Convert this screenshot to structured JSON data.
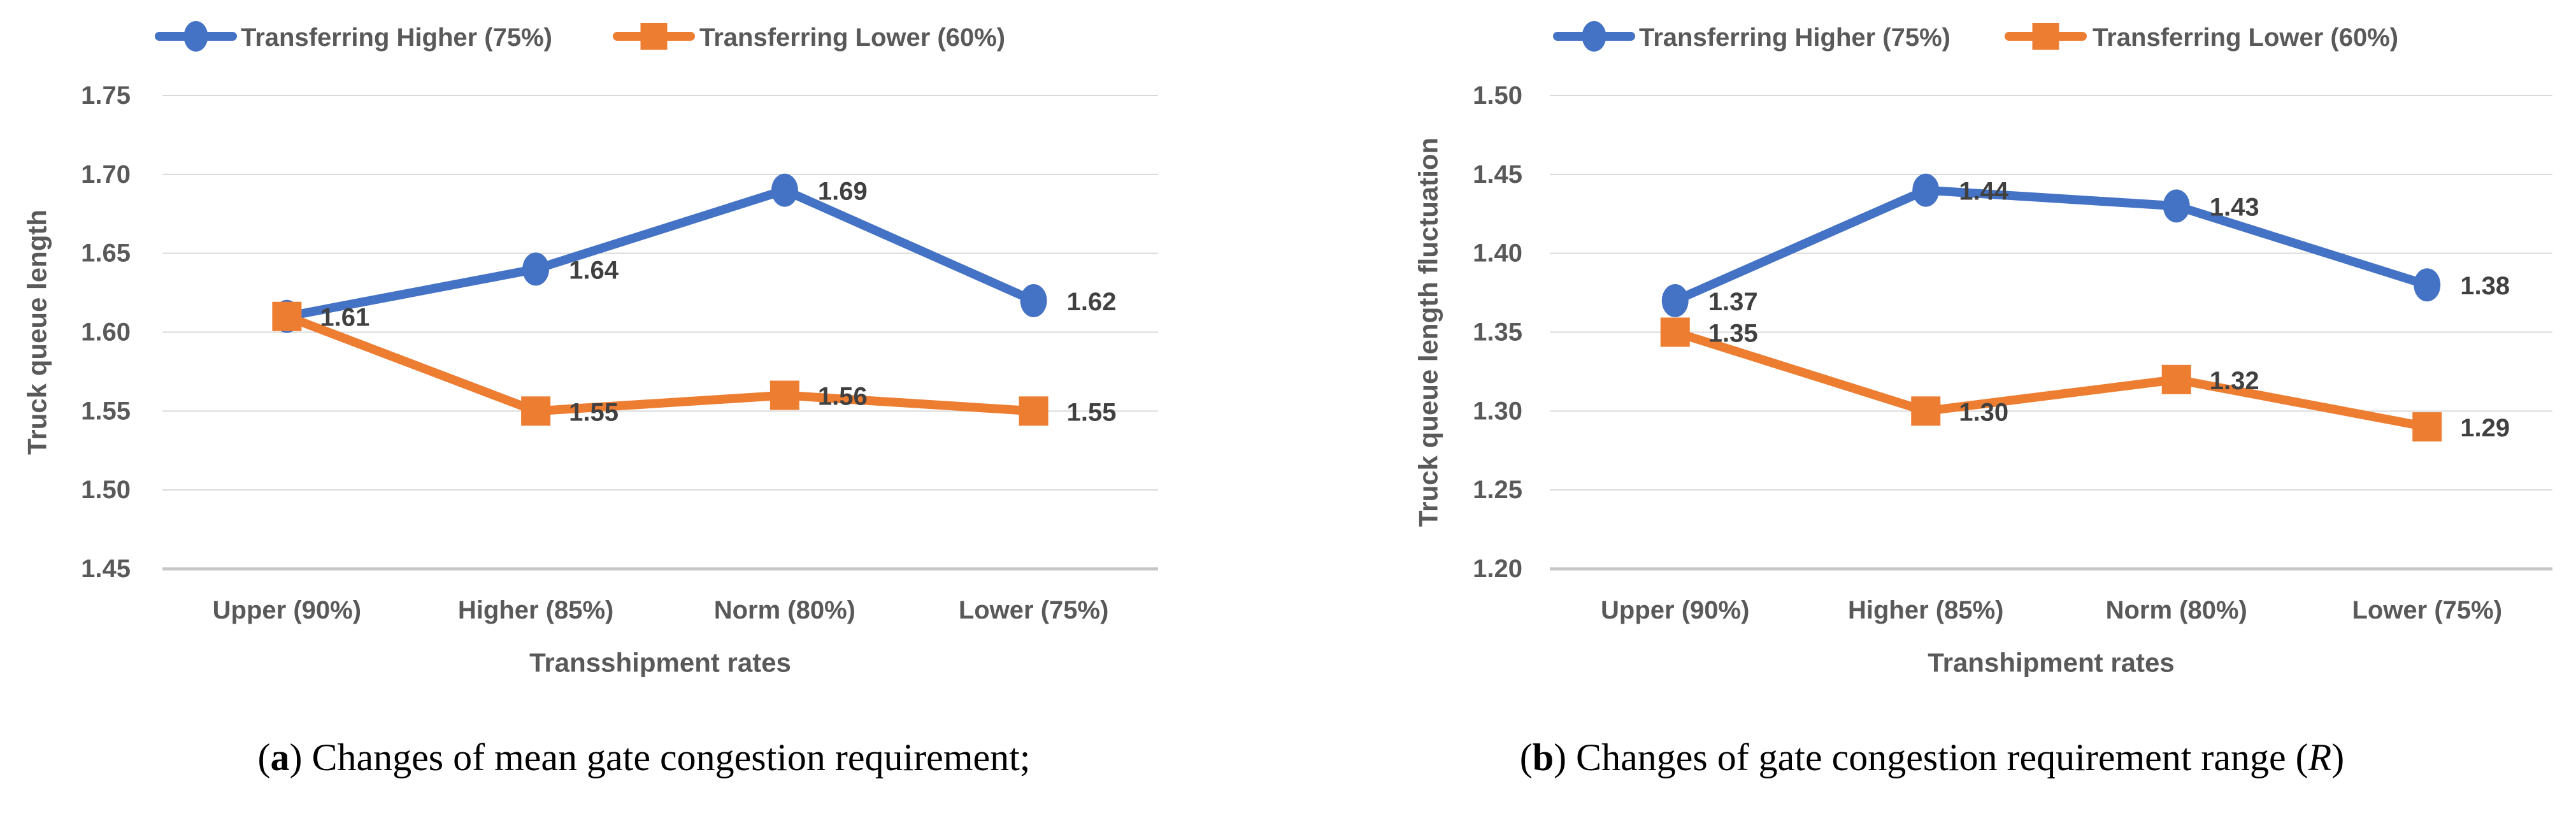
{
  "colors": {
    "series_blue": "#4472C4",
    "series_orange": "#ED7D31",
    "gridline": "#D9D9D9",
    "axis_line": "#C6C6C6",
    "axis_text": "#595959",
    "data_label_text": "#404040",
    "caption_text": "#000000"
  },
  "figures": [
    {
      "caption_parts": [
        {
          "t": "(",
          "s": "n"
        },
        {
          "t": "a",
          "s": "b"
        },
        {
          "t": ") Changes of mean gate congestion requirement;",
          "s": "n"
        }
      ],
      "chart_data": {
        "type": "line",
        "categories": [
          "Upper (90%)",
          "Higher (85%)",
          "Norm (80%)",
          "Lower (75%)"
        ],
        "xlabel": "Transshipment rates",
        "ylabel": "Truck queue length",
        "ylim": [
          1.45,
          1.75
        ],
        "ytick_step": 0.05,
        "yticks_top_to_bottom": [
          "1.75",
          "1.70",
          "1.65",
          "1.60",
          "1.55",
          "1.50",
          "1.45"
        ],
        "grid": true,
        "legend_position": "top",
        "series": [
          {
            "name": "Transferring Higher (75%)",
            "color": "#4472C4",
            "marker": "circle",
            "values": [
              1.61,
              1.64,
              1.69,
              1.62
            ],
            "labels": [
              "",
              "1.64",
              "1.69",
              "1.62"
            ]
          },
          {
            "name": "Transferring Lower (60%)",
            "color": "#ED7D31",
            "marker": "square",
            "values": [
              1.61,
              1.55,
              1.56,
              1.55
            ],
            "labels": [
              "1.61",
              "1.55",
              "1.56",
              "1.55"
            ]
          }
        ]
      }
    },
    {
      "caption_parts": [
        {
          "t": "(",
          "s": "n"
        },
        {
          "t": "b",
          "s": "b"
        },
        {
          "t": ") Changes of gate congestion requirement range (",
          "s": "n"
        },
        {
          "t": "R",
          "s": "i"
        },
        {
          "t": ")",
          "s": "n"
        }
      ],
      "chart_data": {
        "type": "line",
        "categories": [
          "Upper (90%)",
          "Higher (85%)",
          "Norm (80%)",
          "Lower (75%)"
        ],
        "xlabel": "Transhipment rates",
        "ylabel": "Truck queue length fluctuation",
        "ylim": [
          1.2,
          1.5
        ],
        "ytick_step": 0.05,
        "yticks_top_to_bottom": [
          "1.50",
          "1.45",
          "1.40",
          "1.35",
          "1.30",
          "1.25",
          "1.20"
        ],
        "grid": true,
        "legend_position": "top",
        "series": [
          {
            "name": "Transferring Higher (75%)",
            "color": "#4472C4",
            "marker": "circle",
            "values": [
              1.37,
              1.44,
              1.43,
              1.38
            ],
            "labels": [
              "1.37",
              "1.44",
              "1.43",
              "1.38"
            ]
          },
          {
            "name": "Transferring Lower (60%)",
            "color": "#ED7D31",
            "marker": "square",
            "values": [
              1.35,
              1.3,
              1.32,
              1.29
            ],
            "labels": [
              "1.35",
              "1.30",
              "1.32",
              "1.29"
            ]
          }
        ]
      }
    }
  ]
}
